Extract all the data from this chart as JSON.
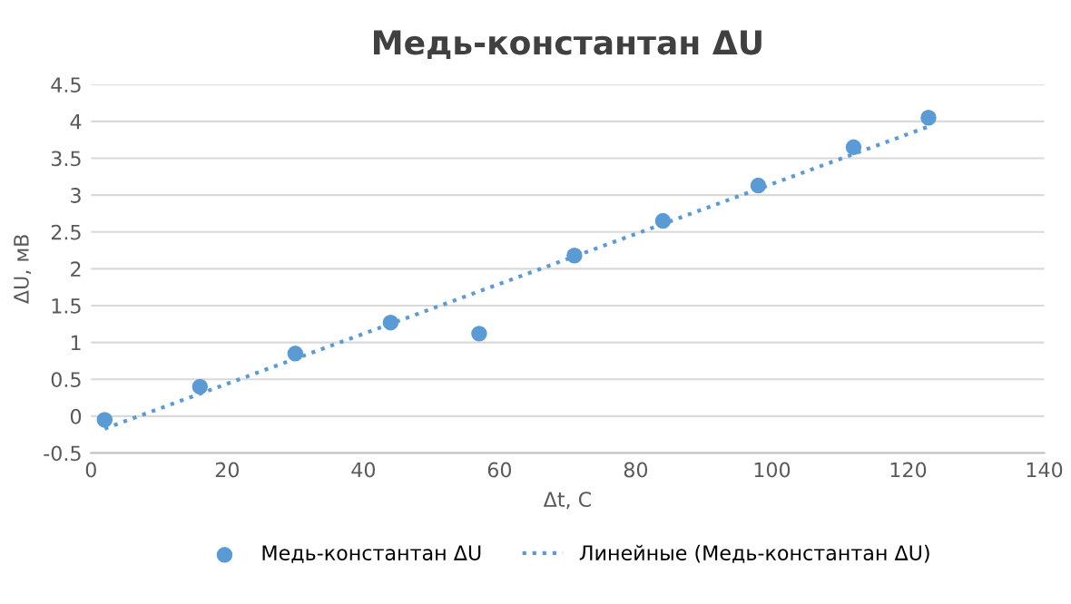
{
  "chart_data": {
    "type": "scatter",
    "title": "Медь-константан ΔU",
    "xlabel": "Δt, C",
    "ylabel": "ΔU, мВ",
    "series": [
      {
        "name": "Медь-константан ΔU",
        "color": "#5b9bd5",
        "marker": "circle",
        "x": [
          2,
          16,
          30,
          44,
          57,
          71,
          84,
          98,
          112,
          123
        ],
        "values": [
          -0.05,
          0.4,
          0.85,
          1.27,
          1.12,
          2.18,
          2.65,
          3.13,
          3.65,
          4.05
        ]
      },
      {
        "name": "Линейные (Медь-константан ΔU)",
        "type": "line",
        "color": "#5b9bd5",
        "line_style": "dotted",
        "marker": "none",
        "x": [
          2,
          123
        ],
        "values": [
          -0.17,
          3.93
        ]
      }
    ],
    "xlim": [
      0,
      140
    ],
    "xticks": [
      0,
      20,
      40,
      60,
      80,
      100,
      120,
      140
    ],
    "ylim": [
      -0.5,
      4.5
    ],
    "yticks": [
      -0.5,
      0,
      0.5,
      1,
      1.5,
      2,
      2.5,
      3,
      3.5,
      4,
      4.5
    ],
    "grid": "y",
    "legend": "bottom"
  }
}
